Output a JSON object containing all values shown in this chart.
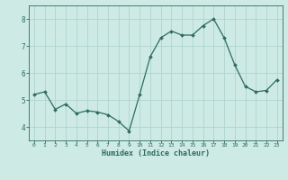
{
  "x": [
    0,
    1,
    2,
    3,
    4,
    5,
    6,
    7,
    8,
    9,
    10,
    11,
    12,
    13,
    14,
    15,
    16,
    17,
    18,
    19,
    20,
    21,
    22,
    23
  ],
  "y": [
    5.2,
    5.3,
    4.65,
    4.85,
    4.5,
    4.6,
    4.55,
    4.45,
    4.2,
    3.85,
    5.2,
    6.6,
    7.3,
    7.55,
    7.4,
    7.4,
    7.75,
    8.0,
    7.3,
    6.3,
    5.5,
    5.3,
    5.35,
    5.75
  ],
  "xlabel": "Humidex (Indice chaleur)",
  "bg_color": "#cdeae5",
  "line_color": "#2e6b5e",
  "marker_color": "#2e6b5e",
  "grid_color": "#b0d4ce",
  "text_color": "#2e6b5e",
  "ylim": [
    3.5,
    8.5
  ],
  "xlim": [
    -0.5,
    23.5
  ],
  "yticks": [
    4,
    5,
    6,
    7,
    8
  ],
  "xticks": [
    0,
    1,
    2,
    3,
    4,
    5,
    6,
    7,
    8,
    9,
    10,
    11,
    12,
    13,
    14,
    15,
    16,
    17,
    18,
    19,
    20,
    21,
    22,
    23
  ]
}
